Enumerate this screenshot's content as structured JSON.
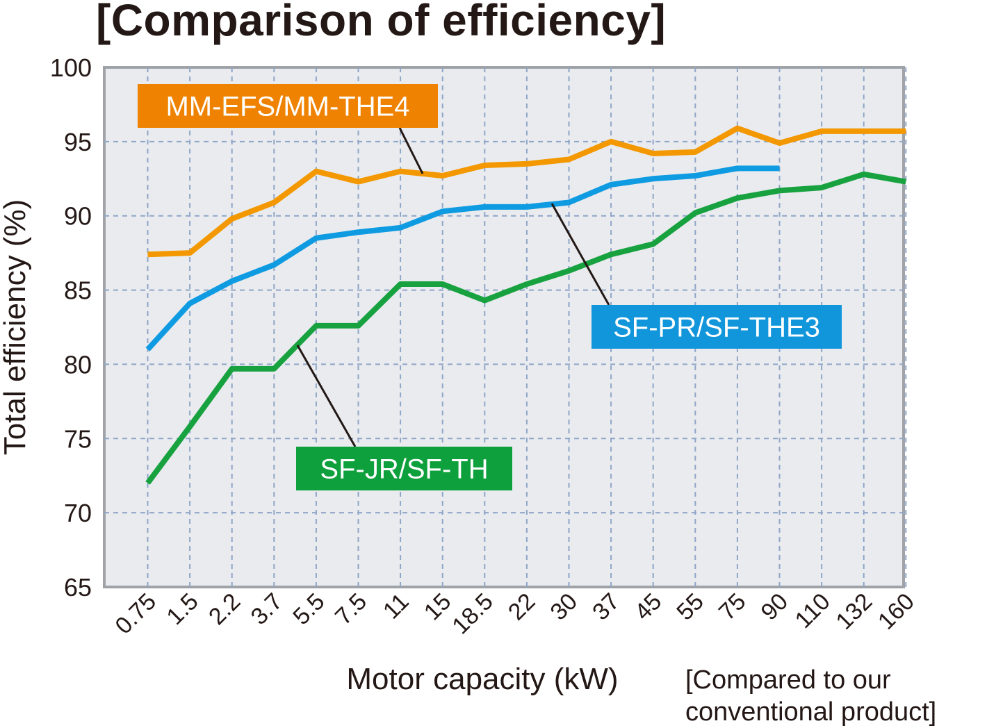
{
  "chart_data": {
    "type": "line",
    "title": "[Comparison of efficiency]",
    "xlabel": "Motor capacity (kW)",
    "ylabel": "Total efficiency (%)",
    "categories": [
      "0.75",
      "1.5",
      "2.2",
      "3.7",
      "5.5",
      "7.5",
      "11",
      "15",
      "18.5",
      "22",
      "30",
      "37",
      "45",
      "55",
      "75",
      "90",
      "110",
      "132",
      "160"
    ],
    "ylim": [
      65,
      100
    ],
    "yticks": [
      65,
      70,
      75,
      80,
      85,
      90,
      95,
      100
    ],
    "grid": true,
    "footnote": [
      "[Compared to our",
      "conventional product]"
    ],
    "series": [
      {
        "name": "MM-EFS/MM-THE4",
        "color": "#F39800",
        "label_color": "#EF8200",
        "values": [
          87.4,
          87.5,
          89.8,
          90.9,
          93.0,
          92.3,
          93.0,
          92.7,
          93.4,
          93.5,
          93.8,
          95.0,
          94.2,
          94.3,
          95.9,
          94.9,
          95.7,
          95.7,
          95.7
        ]
      },
      {
        "name": "SF-PR/SF-THE3",
        "color": "#0F9BE1",
        "label_color": "#1296DB",
        "values": [
          81.0,
          84.1,
          85.6,
          86.7,
          88.5,
          88.9,
          89.2,
          90.3,
          90.6,
          90.6,
          90.9,
          92.1,
          92.5,
          92.7,
          93.2,
          93.2,
          null,
          null,
          null
        ]
      },
      {
        "name": "SF-JR/SF-TH",
        "color": "#17A23F",
        "label_color": "#0EA03C",
        "values": [
          72.0,
          75.8,
          79.7,
          79.7,
          82.6,
          82.6,
          85.4,
          85.4,
          84.3,
          85.4,
          86.3,
          87.4,
          88.1,
          90.2,
          91.2,
          91.7,
          91.9,
          92.8,
          92.3
        ]
      }
    ]
  }
}
